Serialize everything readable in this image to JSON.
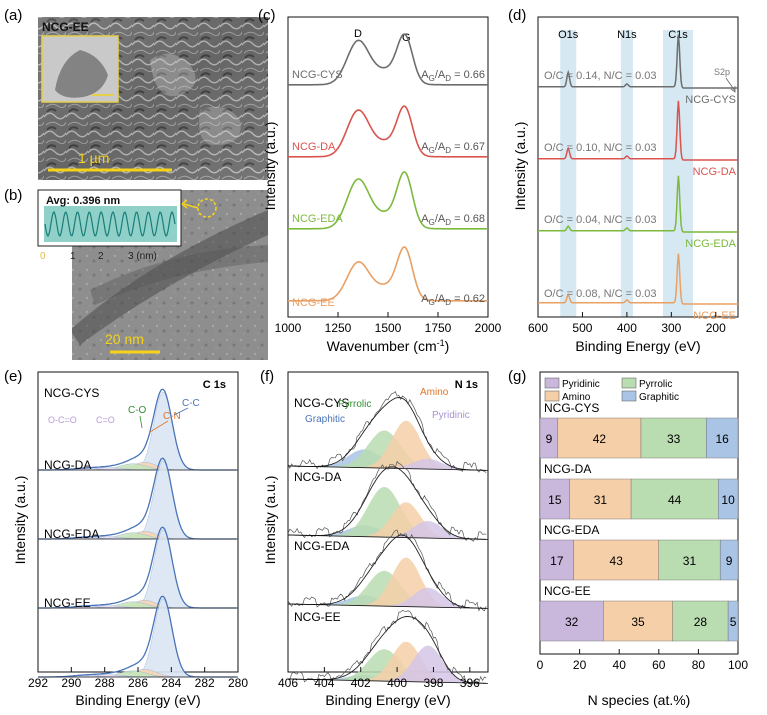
{
  "colors": {
    "cys": "#6d6d6d",
    "da": "#d9534f",
    "eda": "#7cba3d",
    "ee": "#e8a064",
    "pyridinic": "#c9b8dc",
    "amino": "#f5cfa8",
    "pyrrolic": "#b9dcb0",
    "graphitic": "#a9c4e4",
    "band": "#d6e8f2"
  },
  "panel_a": {
    "tag": "(a)",
    "sample": "NCG-EE",
    "scale_label": "1 µm",
    "image_desc": "SEM image of crumpled graphene sheets with TEM inset"
  },
  "panel_b": {
    "tag": "(b)",
    "avg_label": "Avg: 0.396 nm",
    "scale_label": "20 nm",
    "profile_ticks": [
      "0",
      "1",
      "2",
      "3 (nm)"
    ],
    "image_desc": "TEM image of graphene layers with lattice fringe profile inset"
  },
  "chart_data": [
    {
      "id": "c",
      "type": "line",
      "tag": "(c)",
      "xlabel_main": "Wavenumber (cm",
      "xlabel_sup": "-1",
      "xlabel_end": ")",
      "ylabel": "Intensity (a.u.)",
      "xlim": [
        1000,
        2000
      ],
      "xticks": [
        "1000",
        "1250",
        "1500",
        "1750",
        "2000"
      ],
      "peaks": [
        "D",
        "G"
      ],
      "series": [
        {
          "name": "NCG-CYS",
          "ratio": "0.66",
          "D": 0.55,
          "G": 0.56,
          "offset": 3
        },
        {
          "name": "NCG-DA",
          "ratio": "0.67",
          "D": 0.58,
          "G": 0.56,
          "offset": 2
        },
        {
          "name": "NCG-EDA",
          "ratio": "0.68",
          "D": 0.62,
          "G": 0.64,
          "offset": 1
        },
        {
          "name": "NCG-EE",
          "ratio": "0.62",
          "D": 0.48,
          "G": 0.6,
          "offset": 0
        }
      ]
    },
    {
      "id": "d",
      "type": "line",
      "tag": "(d)",
      "xlabel": "Binding Energy (eV)",
      "ylabel": "Intensity (a.u.)",
      "xlim": [
        600,
        150
      ],
      "xticks": [
        "600",
        "500",
        "400",
        "300",
        "200"
      ],
      "bands": [
        "O1s",
        "N1s",
        "C1s"
      ],
      "s2p_label": "S2p",
      "series": [
        {
          "name": "NCG-CYS",
          "ratio": "O/C = 0.14, N/C = 0.03",
          "offset": 3
        },
        {
          "name": "NCG-DA",
          "ratio": "O/C = 0.10, N/C = 0.03",
          "offset": 2
        },
        {
          "name": "NCG-EDA",
          "ratio": "O/C = 0.04, N/C = 0.03",
          "offset": 1
        },
        {
          "name": "NCG-EE",
          "ratio": "O/C = 0.08, N/C = 0.03",
          "offset": 0
        }
      ]
    },
    {
      "id": "e",
      "type": "line",
      "tag": "(e)",
      "title": "C 1s",
      "xlabel": "Binding Energy (eV)",
      "ylabel": "Intensity (a.u.)",
      "xlim": [
        292,
        280
      ],
      "xticks": [
        "292",
        "290",
        "288",
        "286",
        "284",
        "282",
        "280"
      ],
      "annotations": [
        "O-C=O",
        "C=O",
        "C-O",
        "C-N",
        "C-C"
      ],
      "series": [
        "NCG-CYS",
        "NCG-DA",
        "NCG-EDA",
        "NCG-EE"
      ]
    },
    {
      "id": "f",
      "type": "line",
      "tag": "(f)",
      "title": "N 1s",
      "xlabel": "Binding Energy (eV)",
      "ylabel": "Intensity (a.u.)",
      "xlim": [
        406,
        395
      ],
      "xticks": [
        "406",
        "404",
        "402",
        "400",
        "398",
        "396"
      ],
      "annotations": [
        "Graphitic",
        "Pyrrolic",
        "Amino",
        "Pyridinic"
      ],
      "series": [
        "NCG-CYS",
        "NCG-DA",
        "NCG-EDA",
        "NCG-EE"
      ]
    },
    {
      "id": "g",
      "type": "bar",
      "tag": "(g)",
      "xlabel": "N species (at.%)",
      "xlim": [
        0,
        100
      ],
      "xticks": [
        "0",
        "20",
        "40",
        "60",
        "80",
        "100"
      ],
      "legend": [
        "Pyridinic",
        "Pyrrolic",
        "Amino",
        "Graphitic"
      ],
      "categories": [
        "NCG-CYS",
        "NCG-DA",
        "NCG-EDA",
        "NCG-EE"
      ],
      "series": [
        {
          "name": "Pyridinic",
          "values": [
            9,
            15,
            17,
            32
          ]
        },
        {
          "name": "Amino",
          "values": [
            42,
            31,
            43,
            35
          ]
        },
        {
          "name": "Pyrrolic",
          "values": [
            33,
            44,
            31,
            28
          ]
        },
        {
          "name": "Graphitic",
          "values": [
            16,
            10,
            9,
            5
          ]
        }
      ]
    }
  ]
}
